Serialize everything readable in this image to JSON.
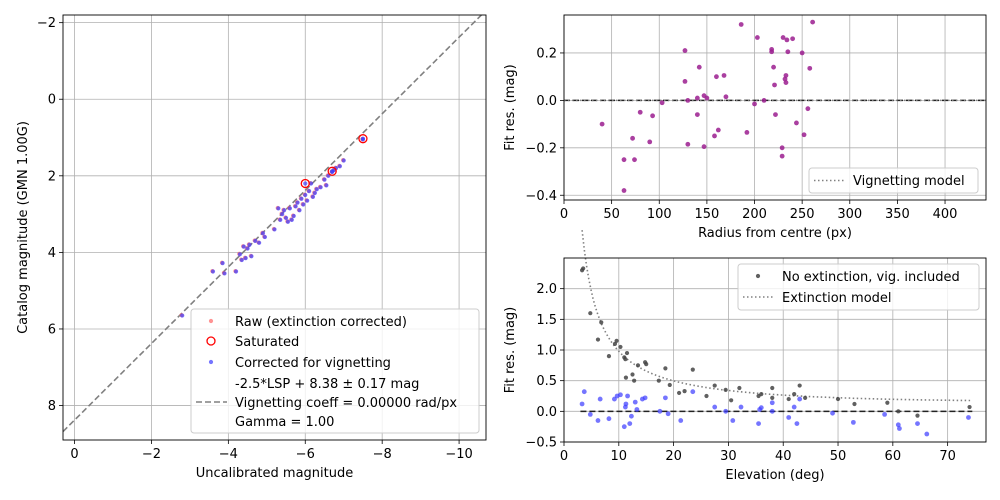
{
  "colors": {
    "raw": "#ff6f6f",
    "saturated": "#ff0000",
    "corrected": "#3a3aff",
    "residual": "#9b1d8f",
    "no_extinction": "#444444",
    "fit_line": "#808080",
    "zero_line": "#222222"
  },
  "chart_data": [
    {
      "name": "calibration",
      "type": "scatter",
      "xlabel": "Uncalibrated magnitude",
      "ylabel": "Catalog magnitude (GMN 1.00G)",
      "xlim": [
        0.3,
        -10.7
      ],
      "ylim": [
        8.9,
        -2.2
      ],
      "xticks": [
        0,
        -2,
        -4,
        -6,
        -8,
        -10
      ],
      "xtick_labels": [
        "0",
        "−2",
        "−4",
        "−6",
        "−8",
        "−10"
      ],
      "yticks": [
        8,
        6,
        4,
        2,
        0,
        -2
      ],
      "ytick_labels": [
        "8",
        "6",
        "4",
        "2",
        "0",
        "−2"
      ],
      "grid": true,
      "fit_line": {
        "slope": 1,
        "intercept": 8.38
      },
      "saturated": [
        [
          -7.5,
          1.03
        ],
        [
          -6.7,
          1.88
        ],
        [
          -6.0,
          2.2
        ]
      ],
      "stars": [
        [
          -2.8,
          5.65
        ],
        [
          -3.6,
          4.5
        ],
        [
          -3.85,
          4.28
        ],
        [
          -3.9,
          4.55
        ],
        [
          -4.2,
          4.5
        ],
        [
          -4.3,
          4.05
        ],
        [
          -4.35,
          4.2
        ],
        [
          -4.4,
          3.85
        ],
        [
          -4.45,
          4.15
        ],
        [
          -4.5,
          3.9
        ],
        [
          -4.55,
          3.8
        ],
        [
          -4.6,
          4.1
        ],
        [
          -4.7,
          3.7
        ],
        [
          -4.8,
          3.75
        ],
        [
          -4.9,
          3.5
        ],
        [
          -4.95,
          3.6
        ],
        [
          -5.2,
          3.4
        ],
        [
          -5.3,
          2.85
        ],
        [
          -5.35,
          3.15
        ],
        [
          -5.4,
          3.0
        ],
        [
          -5.45,
          2.9
        ],
        [
          -5.5,
          3.1
        ],
        [
          -5.55,
          3.2
        ],
        [
          -5.6,
          2.85
        ],
        [
          -5.65,
          3.15
        ],
        [
          -5.7,
          3.05
        ],
        [
          -5.75,
          2.8
        ],
        [
          -5.8,
          2.7
        ],
        [
          -5.85,
          2.9
        ],
        [
          -5.9,
          2.6
        ],
        [
          -5.95,
          2.75
        ],
        [
          -6.0,
          2.5
        ],
        [
          -6.05,
          2.65
        ],
        [
          -6.1,
          2.4
        ],
        [
          -6.15,
          2.2
        ],
        [
          -6.2,
          2.55
        ],
        [
          -6.25,
          2.45
        ],
        [
          -6.3,
          2.35
        ],
        [
          -6.4,
          2.3
        ],
        [
          -6.5,
          2.1
        ],
        [
          -6.55,
          2.25
        ],
        [
          -6.6,
          2.0
        ],
        [
          -6.7,
          1.9
        ],
        [
          -6.75,
          1.85
        ],
        [
          -6.8,
          1.8
        ],
        [
          -6.9,
          1.75
        ],
        [
          -7.0,
          1.6
        ],
        [
          -7.5,
          1.05
        ]
      ],
      "legend": {
        "location": "lower-right",
        "entries": [
          "Raw (extinction corrected)",
          "Saturated",
          "Corrected for vignetting",
          "-2.5*LSP + 8.38 ± 0.17 mag",
          "Vignetting coeff = 0.00000 rad/px",
          "Gamma = 1.00"
        ]
      }
    },
    {
      "name": "vignetting-residuals",
      "type": "scatter",
      "xlabel": "Radius from centre (px)",
      "ylabel": "Fit res. (mag)",
      "xlim": [
        0,
        443
      ],
      "ylim": [
        -0.42,
        0.36
      ],
      "xticks": [
        0,
        50,
        100,
        150,
        200,
        250,
        300,
        350,
        400
      ],
      "xtick_labels": [
        "0",
        "50",
        "100",
        "150",
        "200",
        "250",
        "300",
        "350",
        "400"
      ],
      "yticks": [
        -0.4,
        -0.2,
        0.0,
        0.2
      ],
      "ytick_labels": [
        "−0.4",
        "−0.2",
        "0.0",
        "0.2"
      ],
      "grid": true,
      "points": [
        [
          40,
          -0.1
        ],
        [
          63,
          -0.25
        ],
        [
          63,
          -0.38
        ],
        [
          72,
          -0.16
        ],
        [
          74,
          -0.25
        ],
        [
          80,
          -0.05
        ],
        [
          90,
          -0.175
        ],
        [
          93,
          -0.065
        ],
        [
          103,
          -0.01
        ],
        [
          127,
          0.08
        ],
        [
          127,
          0.21
        ],
        [
          130,
          -0.185
        ],
        [
          130,
          0.0
        ],
        [
          140,
          0.01
        ],
        [
          140,
          -0.06
        ],
        [
          142,
          0.14
        ],
        [
          147,
          0.02
        ],
        [
          147,
          -0.195
        ],
        [
          150,
          0.01
        ],
        [
          158,
          -0.15
        ],
        [
          160,
          0.1
        ],
        [
          162,
          -0.125
        ],
        [
          168,
          0.105
        ],
        [
          170,
          0.015
        ],
        [
          186,
          0.32
        ],
        [
          192,
          -0.135
        ],
        [
          200,
          -0.015
        ],
        [
          203,
          0.265
        ],
        [
          210,
          0.0
        ],
        [
          218,
          0.215
        ],
        [
          218,
          0.205
        ],
        [
          220,
          0.14
        ],
        [
          221,
          0.065
        ],
        [
          222,
          -0.06
        ],
        [
          229,
          -0.2
        ],
        [
          229,
          -0.235
        ],
        [
          230,
          0.265
        ],
        [
          232,
          0.09
        ],
        [
          233,
          0.075
        ],
        [
          233,
          0.105
        ],
        [
          234,
          0.255
        ],
        [
          235,
          0.205
        ],
        [
          240,
          0.26
        ],
        [
          244,
          -0.095
        ],
        [
          250,
          0.2
        ],
        [
          252,
          -0.145
        ],
        [
          256,
          -0.035
        ],
        [
          258,
          0.135
        ],
        [
          261,
          0.33
        ]
      ],
      "model": {
        "name": "Vignetting model",
        "value": 0
      },
      "legend": {
        "location": "lower-right",
        "entries": [
          "Vignetting model"
        ]
      }
    },
    {
      "name": "extinction-residuals",
      "type": "scatter",
      "xlabel": "Elevation (deg)",
      "ylabel": "Fit res. (mag)",
      "xlim": [
        0,
        77
      ],
      "ylim": [
        -0.5,
        2.5
      ],
      "xticks": [
        0,
        10,
        20,
        30,
        40,
        50,
        60,
        70
      ],
      "xtick_labels": [
        "0",
        "10",
        "20",
        "30",
        "40",
        "50",
        "60",
        "70"
      ],
      "yticks": [
        -0.5,
        0.0,
        0.5,
        1.0,
        1.5,
        2.0
      ],
      "ytick_labels": [
        "−0.5",
        "0.0",
        "0.5",
        "1.0",
        "1.5",
        "2.0"
      ],
      "grid": true,
      "no_extinction": [
        [
          3.3,
          2.3
        ],
        [
          3.5,
          2.33
        ],
        [
          4.8,
          1.6
        ],
        [
          6.2,
          1.17
        ],
        [
          6.8,
          1.45
        ],
        [
          8.2,
          0.9
        ],
        [
          9.3,
          1.1
        ],
        [
          9.6,
          1.15
        ],
        [
          10.3,
          1.05
        ],
        [
          11.0,
          0.88
        ],
        [
          11.2,
          0.85
        ],
        [
          11.5,
          0.95
        ],
        [
          11.3,
          0.55
        ],
        [
          12.5,
          0.6
        ],
        [
          12.8,
          0.5
        ],
        [
          13.5,
          0.75
        ],
        [
          14.8,
          0.8
        ],
        [
          15.0,
          0.77
        ],
        [
          17.3,
          0.5
        ],
        [
          18.5,
          0.7
        ],
        [
          19.3,
          0.43
        ],
        [
          21.0,
          0.3
        ],
        [
          22.0,
          0.33
        ],
        [
          23.5,
          0.68
        ],
        [
          26.0,
          0.25
        ],
        [
          27.5,
          0.42
        ],
        [
          29.5,
          0.35
        ],
        [
          30.5,
          0.18
        ],
        [
          32.0,
          0.38
        ],
        [
          35.5,
          0.25
        ],
        [
          36.0,
          0.28
        ],
        [
          38.0,
          0.38
        ],
        [
          38.0,
          0.22
        ],
        [
          41.0,
          0.2
        ],
        [
          42.0,
          0.28
        ],
        [
          43.0,
          0.42
        ],
        [
          44.0,
          0.22
        ],
        [
          50.0,
          0.2
        ],
        [
          53.0,
          0.12
        ],
        [
          59.0,
          0.14
        ],
        [
          61.0,
          0.0
        ],
        [
          64.5,
          -0.07
        ],
        [
          74.0,
          0.07
        ]
      ],
      "corrected": [
        [
          3.3,
          0.12
        ],
        [
          3.7,
          0.32
        ],
        [
          4.8,
          -0.05
        ],
        [
          6.2,
          -0.15
        ],
        [
          6.6,
          0.2
        ],
        [
          8.2,
          -0.12
        ],
        [
          9.2,
          0.2
        ],
        [
          9.7,
          0.25
        ],
        [
          10.3,
          0.27
        ],
        [
          11.0,
          -0.25
        ],
        [
          11.2,
          0.07
        ],
        [
          11.3,
          0.12
        ],
        [
          11.6,
          0.25
        ],
        [
          12.0,
          -0.2
        ],
        [
          12.3,
          -0.08
        ],
        [
          13.0,
          0.15
        ],
        [
          13.3,
          0.03
        ],
        [
          14.3,
          0.2
        ],
        [
          14.8,
          0.22
        ],
        [
          17.5,
          0.0
        ],
        [
          18.5,
          0.22
        ],
        [
          19.0,
          -0.04
        ],
        [
          21.3,
          -0.15
        ],
        [
          23.5,
          0.32
        ],
        [
          27.5,
          0.07
        ],
        [
          29.5,
          0.0
        ],
        [
          30.8,
          -0.15
        ],
        [
          32.3,
          0.07
        ],
        [
          35.5,
          -0.2
        ],
        [
          35.7,
          0.03
        ],
        [
          36.0,
          0.06
        ],
        [
          38.0,
          0.0
        ],
        [
          38.0,
          0.14
        ],
        [
          41.0,
          -0.1
        ],
        [
          42.0,
          0.07
        ],
        [
          42.5,
          -0.2
        ],
        [
          43.0,
          0.2
        ],
        [
          49.0,
          -0.03
        ],
        [
          52.8,
          -0.18
        ],
        [
          58.5,
          -0.05
        ],
        [
          61.0,
          -0.22
        ],
        [
          61.2,
          -0.28
        ],
        [
          64.5,
          -0.2
        ],
        [
          66.2,
          -0.37
        ],
        [
          73.8,
          -0.1
        ]
      ],
      "model": {
        "name": "Extinction model",
        "k": 0.17
      },
      "legend": {
        "location": "top-right",
        "entries": [
          "No extinction, vig. included",
          "Extinction model"
        ]
      }
    }
  ]
}
